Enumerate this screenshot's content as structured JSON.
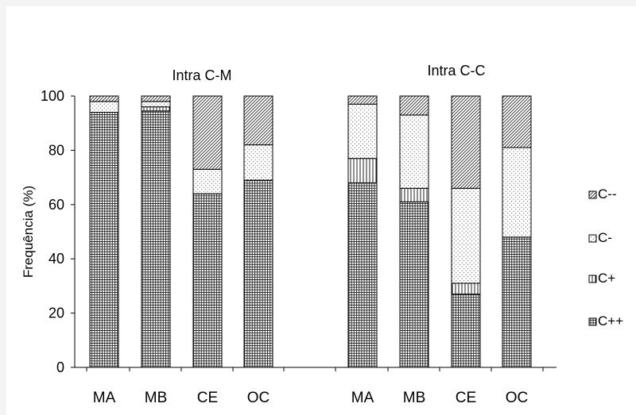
{
  "chart_data": {
    "type": "bar",
    "stacked": true,
    "ylabel": "Frequência  (%)",
    "ylim": [
      0,
      100
    ],
    "yticks": [
      0,
      20,
      40,
      60,
      80,
      100
    ],
    "grid": false,
    "legend_position": "right",
    "groups": [
      {
        "title": "Intra C-M",
        "categories": [
          "MA",
          "MB",
          "CE",
          "OC"
        ],
        "series": [
          {
            "name": "C++",
            "values": [
              94,
              94.5,
              64,
              69
            ]
          },
          {
            "name": "C+",
            "values": [
              0,
              1.5,
              0,
              0
            ]
          },
          {
            "name": "C-",
            "values": [
              4,
              2,
              9,
              13
            ]
          },
          {
            "name": "C--",
            "values": [
              2,
              2,
              27,
              18
            ]
          }
        ]
      },
      {
        "title": "Intra C-C",
        "categories": [
          "MA",
          "MB",
          "CE",
          "OC"
        ],
        "series": [
          {
            "name": "C++",
            "values": [
              68,
              61,
              27,
              48
            ]
          },
          {
            "name": "C+",
            "values": [
              9,
              5,
              4,
              0
            ]
          },
          {
            "name": "C-",
            "values": [
              20,
              27,
              35,
              33
            ]
          },
          {
            "name": "C--",
            "values": [
              3,
              7,
              34,
              19
            ]
          }
        ]
      }
    ],
    "legend": [
      "C--",
      "C-",
      "C+",
      "C++"
    ]
  }
}
